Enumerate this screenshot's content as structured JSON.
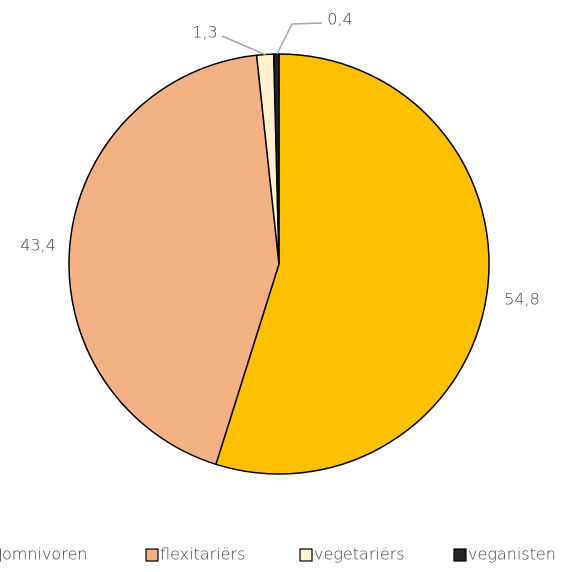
{
  "chart_data": {
    "type": "pie",
    "categories": [
      "omnivoren",
      "flexitariërs",
      "vegetariërs",
      "veganisten"
    ],
    "values": [
      54.8,
      43.4,
      1.3,
      0.4
    ],
    "value_labels": [
      "54,8",
      "43,4",
      "1,3",
      "0,4"
    ],
    "colors": [
      "#ffc000",
      "#f4b183",
      "#fff2cc",
      "#262626"
    ],
    "legend": "bottom"
  }
}
